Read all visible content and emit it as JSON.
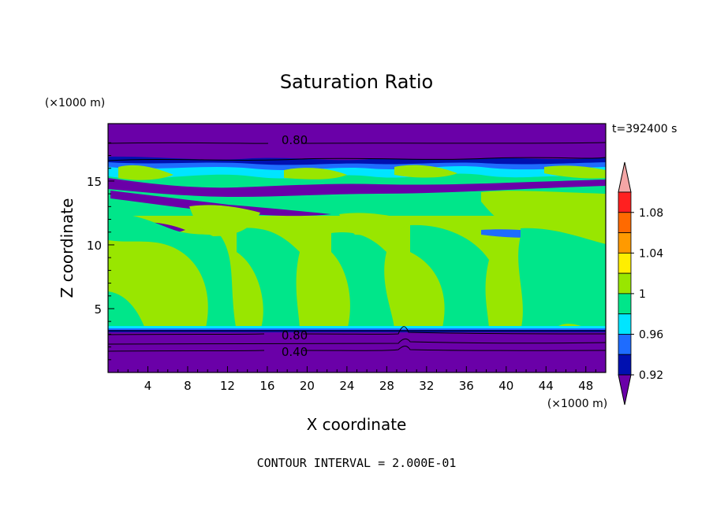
{
  "chart_data": {
    "type": "heatmap",
    "title": "Saturation Ratio",
    "xlabel": "X coordinate",
    "ylabel": "Z coordinate",
    "x_units": "(×1000 m)",
    "y_units": "(×1000 m)",
    "xlim": [
      0,
      50
    ],
    "ylim": [
      0,
      19.5
    ],
    "x_ticks": [
      4,
      8,
      12,
      16,
      20,
      24,
      28,
      32,
      36,
      40,
      44,
      48
    ],
    "y_ticks": [
      5,
      10,
      15
    ],
    "time_label": "t=392400 s",
    "footer": "CONTOUR INTERVAL = 2.000E-01",
    "contour_labels": [
      {
        "text": "0.80",
        "x": 17,
        "z": 18.2
      },
      {
        "text": "0.80",
        "x": 17,
        "z": 2.9
      },
      {
        "text": "0.40",
        "x": 17,
        "z": 1.6
      }
    ],
    "colorbar": {
      "labels": [
        "1.08",
        "1.04",
        "1",
        "0.96",
        "0.92"
      ],
      "levels": [
        1.08,
        1.04,
        1.0,
        0.96,
        0.92
      ],
      "colors": [
        "#f4a6a6",
        "#ff2020",
        "#ff6a00",
        "#ff9a00",
        "#ffee00",
        "#99e600",
        "#00e68a",
        "#00e5ff",
        "#1e6cff",
        "#0010b0",
        "#6a00a8"
      ]
    },
    "layers": [
      {
        "z_range": [
          0,
          2.2
        ],
        "value": "0.40-0.80",
        "color": "#6a00a8"
      },
      {
        "z_range": [
          2.2,
          3.3
        ],
        "value": "0.80-0.92",
        "color": "#6a00a8"
      },
      {
        "z_range": [
          3.3,
          12
        ],
        "value": "0.98-1.02",
        "color": "#99e600"
      },
      {
        "z_range": [
          12,
          17
        ],
        "value": "0.92-1.00",
        "color": "#00e68a"
      },
      {
        "z_range": [
          17,
          18.5
        ],
        "value": "0.80-0.92",
        "color": "#6a00a8"
      },
      {
        "z_range": [
          18.5,
          19.5
        ],
        "value": "<0.80",
        "color": "#6a00a8"
      }
    ]
  }
}
